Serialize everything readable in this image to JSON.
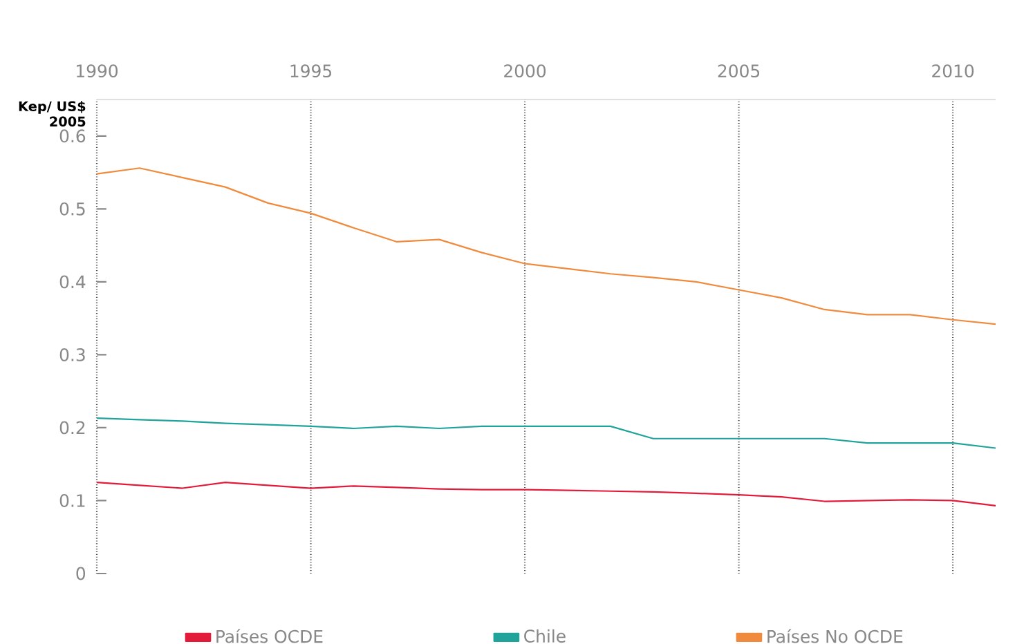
{
  "chart_data": {
    "type": "line",
    "ylabel": "Kep/ US$ 2005",
    "x": [
      1990,
      1991,
      1992,
      1993,
      1994,
      1995,
      1996,
      1997,
      1998,
      1999,
      2000,
      2001,
      2002,
      2003,
      2004,
      2005,
      2006,
      2007,
      2008,
      2009,
      2010,
      2011
    ],
    "series": [
      {
        "name": "Países  OCDE",
        "color": "#e31b3b",
        "values": [
          0.125,
          0.121,
          0.117,
          0.125,
          0.121,
          0.117,
          0.12,
          0.118,
          0.116,
          0.115,
          0.115,
          0.114,
          0.113,
          0.112,
          0.11,
          0.108,
          0.105,
          0.099,
          0.1,
          0.101,
          0.1,
          0.093
        ]
      },
      {
        "name": "Chile",
        "color": "#1fa39a",
        "values": [
          0.213,
          0.211,
          0.209,
          0.206,
          0.204,
          0.202,
          0.199,
          0.202,
          0.199,
          0.202,
          0.202,
          0.202,
          0.202,
          0.185,
          0.185,
          0.185,
          0.185,
          0.185,
          0.179,
          0.179,
          0.179,
          0.172
        ]
      },
      {
        "name": "Países No OCDE",
        "color": "#f08a3c",
        "values": [
          0.548,
          0.556,
          0.543,
          0.53,
          0.508,
          0.494,
          0.474,
          0.455,
          0.458,
          0.44,
          0.425,
          0.418,
          0.411,
          0.406,
          0.4,
          0.389,
          0.378,
          0.362,
          0.355,
          0.355,
          0.348,
          0.342
        ]
      }
    ],
    "xlim": [
      1990,
      2011
    ],
    "xticks": [
      1990,
      1995,
      2000,
      2005,
      2010
    ],
    "ylim": [
      0,
      0.65
    ],
    "yticks": [
      0,
      0.1,
      0.2,
      0.3,
      0.4,
      0.5,
      0.6
    ],
    "grid": "x",
    "legend": "bottom",
    "marker": "none",
    "line_style": "solid"
  }
}
